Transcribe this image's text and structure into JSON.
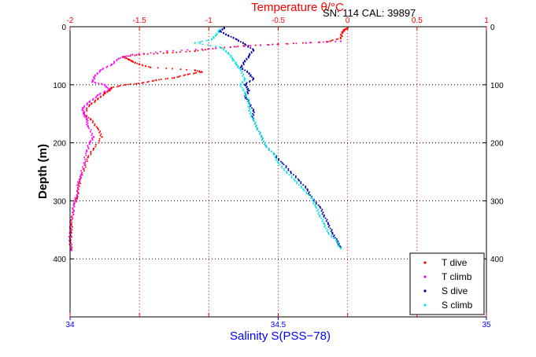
{
  "chart_data": {
    "type": "scatter",
    "title": "Temperature θ/°C",
    "header_note": "SN: 114  CAL: 39897",
    "ylabel": "Depth (m)",
    "xlabel_bottom": "Salinity S(PSS−78)",
    "xlabel_top": "Temperature θ/°C",
    "x_bottom_lim": [
      34,
      35
    ],
    "x_top_lim": [
      -2,
      1
    ],
    "y_lim": [
      0,
      500
    ],
    "y_reversed": true,
    "grid": true,
    "legend_position": "bottom-right",
    "colors": {
      "temperature_axis": "#ff0000",
      "salinity_axis": "#0000ff",
      "frame": "#000000",
      "grid": "#000000"
    },
    "ticks": {
      "top": [
        {
          "value": -2,
          "label": "-2"
        },
        {
          "value": -1.5,
          "label": "-1.5"
        },
        {
          "value": -1,
          "label": "-1"
        },
        {
          "value": -0.5,
          "label": "-0.5"
        },
        {
          "value": 0,
          "label": "0"
        },
        {
          "value": 0.5,
          "label": "0.5"
        },
        {
          "value": 1,
          "label": "1"
        }
      ],
      "bottom": [
        {
          "value": 34,
          "label": "34"
        },
        {
          "value": 34.5,
          "label": "34.5"
        },
        {
          "value": 35,
          "label": "35"
        }
      ],
      "left": [
        {
          "value": 0,
          "label": "0"
        },
        {
          "value": 100,
          "label": "100"
        },
        {
          "value": 200,
          "label": "200"
        },
        {
          "value": 300,
          "label": "300"
        },
        {
          "value": 400,
          "label": "400"
        }
      ],
      "right": [
        {
          "value": 0,
          "label": "0"
        },
        {
          "value": 100,
          "label": "100"
        },
        {
          "value": 200,
          "label": "200"
        },
        {
          "value": 300,
          "label": "300"
        },
        {
          "value": 400,
          "label": "400"
        }
      ]
    },
    "series": [
      {
        "name": "T dive",
        "axis": "temperature",
        "color": "#ff0000",
        "points": [
          [
            0.0,
            2
          ],
          [
            -0.02,
            5
          ],
          [
            -0.04,
            10
          ],
          [
            -0.05,
            20
          ],
          [
            -0.15,
            26
          ],
          [
            -0.5,
            30
          ],
          [
            -0.75,
            33
          ],
          [
            -0.95,
            37
          ],
          [
            -1.1,
            42
          ],
          [
            -1.3,
            45
          ],
          [
            -1.5,
            48
          ],
          [
            -1.62,
            52
          ],
          [
            -1.58,
            56
          ],
          [
            -1.55,
            60
          ],
          [
            -1.5,
            65
          ],
          [
            -1.42,
            70
          ],
          [
            -1.1,
            75
          ],
          [
            -1.05,
            78
          ],
          [
            -1.15,
            82
          ],
          [
            -1.25,
            88
          ],
          [
            -1.38,
            92
          ],
          [
            -1.48,
            97
          ],
          [
            -1.6,
            100
          ],
          [
            -1.7,
            105
          ],
          [
            -1.72,
            110
          ],
          [
            -1.75,
            115
          ],
          [
            -1.8,
            125
          ],
          [
            -1.86,
            135
          ],
          [
            -1.9,
            150
          ],
          [
            -1.85,
            160
          ],
          [
            -1.8,
            175
          ],
          [
            -1.77,
            190
          ],
          [
            -1.83,
            210
          ],
          [
            -1.87,
            225
          ],
          [
            -1.9,
            245
          ],
          [
            -1.93,
            265
          ],
          [
            -1.94,
            280
          ],
          [
            -1.95,
            295
          ],
          [
            -1.97,
            305
          ],
          [
            -1.98,
            320
          ],
          [
            -1.99,
            340
          ],
          [
            -1.99,
            355
          ],
          [
            -2.0,
            370
          ],
          [
            -1.99,
            385
          ]
        ]
      },
      {
        "name": "T climb",
        "axis": "temperature",
        "color": "#ff00ff",
        "points": [
          [
            -0.05,
            25
          ],
          [
            -0.3,
            28
          ],
          [
            -0.7,
            33
          ],
          [
            -1.0,
            38
          ],
          [
            -1.3,
            42
          ],
          [
            -1.55,
            48
          ],
          [
            -1.65,
            55
          ],
          [
            -1.7,
            65
          ],
          [
            -1.78,
            75
          ],
          [
            -1.82,
            85
          ],
          [
            -1.84,
            95
          ],
          [
            -1.75,
            100
          ],
          [
            -1.72,
            108
          ],
          [
            -1.8,
            118
          ],
          [
            -1.86,
            130
          ],
          [
            -1.91,
            140
          ],
          [
            -1.9,
            150
          ],
          [
            -1.88,
            160
          ],
          [
            -1.87,
            172
          ],
          [
            -1.83,
            190
          ],
          [
            -1.86,
            200
          ],
          [
            -1.88,
            215
          ],
          [
            -1.9,
            235
          ],
          [
            -1.92,
            255
          ],
          [
            -1.94,
            270
          ],
          [
            -1.95,
            290
          ],
          [
            -1.97,
            305
          ],
          [
            -1.98,
            320
          ],
          [
            -2.0,
            345
          ],
          [
            -2.0,
            365
          ],
          [
            -1.99,
            385
          ]
        ]
      },
      {
        "name": "S dive",
        "axis": "salinity",
        "color": "#0000aa",
        "points": [
          [
            34.37,
            2
          ],
          [
            34.36,
            8
          ],
          [
            34.38,
            15
          ],
          [
            34.4,
            22
          ],
          [
            34.42,
            30
          ],
          [
            34.44,
            40
          ],
          [
            34.43,
            50
          ],
          [
            34.42,
            60
          ],
          [
            34.41,
            70
          ],
          [
            34.43,
            80
          ],
          [
            34.44,
            90
          ],
          [
            34.42,
            100
          ],
          [
            34.43,
            110
          ],
          [
            34.42,
            120
          ],
          [
            34.43,
            130
          ],
          [
            34.44,
            145
          ],
          [
            34.44,
            160
          ],
          [
            34.45,
            175
          ],
          [
            34.46,
            190
          ],
          [
            34.47,
            205
          ],
          [
            34.49,
            220
          ],
          [
            34.51,
            235
          ],
          [
            34.53,
            250
          ],
          [
            34.55,
            265
          ],
          [
            34.57,
            280
          ],
          [
            34.58,
            295
          ],
          [
            34.6,
            310
          ],
          [
            34.61,
            325
          ],
          [
            34.62,
            340
          ],
          [
            34.63,
            355
          ],
          [
            34.64,
            368
          ],
          [
            34.65,
            380
          ]
        ]
      },
      {
        "name": "S climb",
        "axis": "salinity",
        "color": "#00e5e5",
        "points": [
          [
            34.36,
            5
          ],
          [
            34.35,
            15
          ],
          [
            34.34,
            22
          ],
          [
            34.3,
            28
          ],
          [
            34.36,
            35
          ],
          [
            34.38,
            45
          ],
          [
            34.39,
            55
          ],
          [
            34.4,
            65
          ],
          [
            34.41,
            75
          ],
          [
            34.42,
            90
          ],
          [
            34.41,
            100
          ],
          [
            34.42,
            115
          ],
          [
            34.43,
            130
          ],
          [
            34.43,
            145
          ],
          [
            34.44,
            160
          ],
          [
            34.45,
            175
          ],
          [
            34.46,
            190
          ],
          [
            34.47,
            205
          ],
          [
            34.49,
            220
          ],
          [
            34.5,
            235
          ],
          [
            34.52,
            250
          ],
          [
            34.54,
            265
          ],
          [
            34.56,
            280
          ],
          [
            34.58,
            295
          ],
          [
            34.59,
            310
          ],
          [
            34.6,
            325
          ],
          [
            34.61,
            340
          ],
          [
            34.62,
            355
          ],
          [
            34.64,
            370
          ],
          [
            34.65,
            382
          ]
        ]
      }
    ]
  }
}
